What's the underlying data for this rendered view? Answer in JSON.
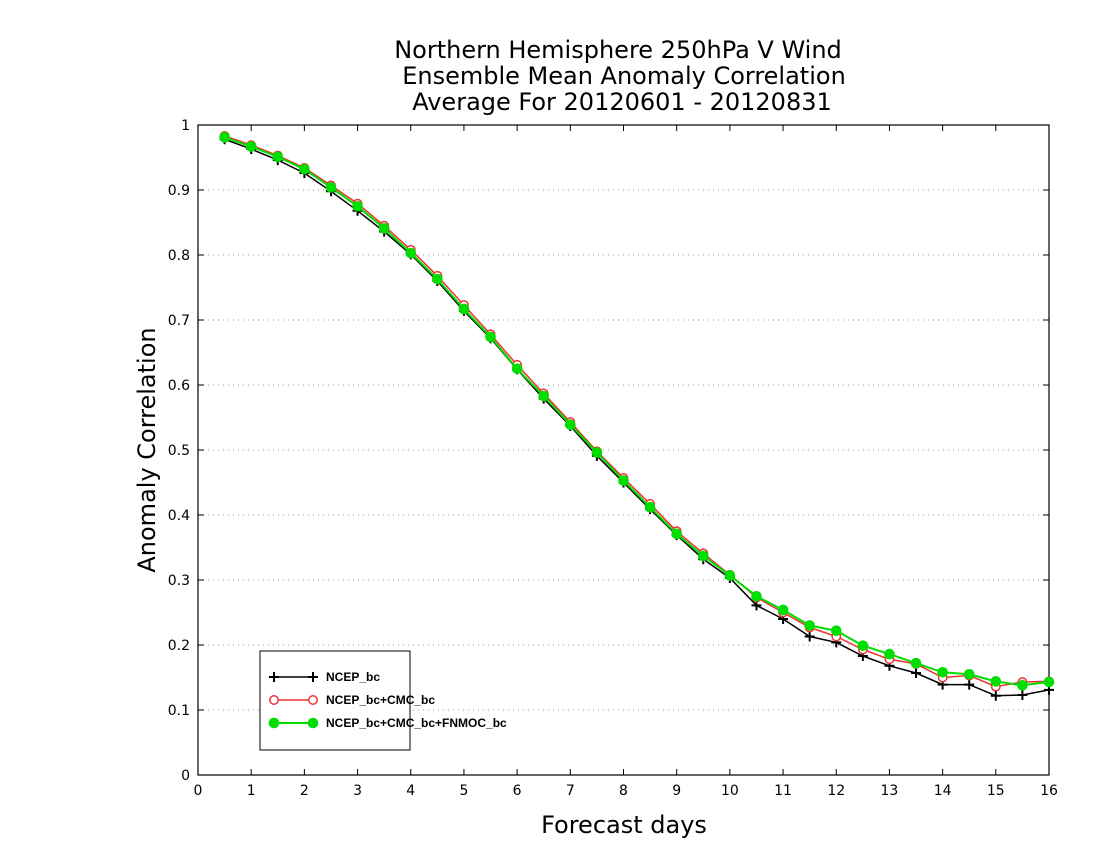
{
  "chart_data": {
    "type": "line",
    "title_lines": [
      "Northern Hemisphere 250hPa V Wind",
      "Ensemble Mean Anomaly Correlation",
      "Average For 20120601 - 20120831"
    ],
    "xlabel": "Forecast days",
    "ylabel": "Anomaly Correlation",
    "xlim": [
      0,
      16
    ],
    "ylim": [
      0,
      1
    ],
    "xticks": [
      0,
      1,
      2,
      3,
      4,
      5,
      6,
      7,
      8,
      9,
      10,
      11,
      12,
      13,
      14,
      15,
      16
    ],
    "yticks": [
      0,
      0.1,
      0.2,
      0.3,
      0.4,
      0.5,
      0.6,
      0.7,
      0.8,
      0.9,
      1
    ],
    "ytick_labels": [
      "0",
      "0.1",
      "0.2",
      "0.3",
      "0.4",
      "0.5",
      "0.6",
      "0.7",
      "0.8",
      "0.9",
      "1"
    ],
    "xtick_labels": [
      "0",
      "1",
      "2",
      "3",
      "4",
      "5",
      "6",
      "7",
      "8",
      "9",
      "10",
      "11",
      "12",
      "13",
      "14",
      "15",
      "16"
    ],
    "grid": "horizontal dotted",
    "legend_position": "bottom-left",
    "x": [
      0.5,
      1,
      1.5,
      2,
      2.5,
      3,
      3.5,
      4,
      4.5,
      5,
      5.5,
      6,
      6.5,
      7,
      7.5,
      8,
      8.5,
      9,
      9.5,
      10,
      10.5,
      11,
      11.5,
      12,
      12.5,
      13,
      13.5,
      14,
      14.5,
      15,
      15.5,
      16
    ],
    "series": [
      {
        "name": "NCEP_bc",
        "color": "#000000",
        "marker": "plus",
        "values": [
          0.978,
          0.963,
          0.946,
          0.926,
          0.898,
          0.868,
          0.836,
          0.801,
          0.76,
          0.714,
          0.672,
          0.624,
          0.579,
          0.537,
          0.491,
          0.45,
          0.409,
          0.369,
          0.332,
          0.303,
          0.261,
          0.24,
          0.213,
          0.204,
          0.183,
          0.168,
          0.157,
          0.139,
          0.139,
          0.122,
          0.123,
          0.131
        ]
      },
      {
        "name": "NCEP_bc+CMC_bc",
        "color": "#ee3333",
        "marker": "open-circle",
        "values": [
          0.983,
          0.969,
          0.953,
          0.934,
          0.907,
          0.879,
          0.845,
          0.808,
          0.768,
          0.723,
          0.678,
          0.631,
          0.587,
          0.543,
          0.498,
          0.457,
          0.417,
          0.375,
          0.341,
          0.308,
          0.273,
          0.25,
          0.227,
          0.213,
          0.193,
          0.178,
          0.171,
          0.15,
          0.153,
          0.136,
          0.143,
          0.144
        ]
      },
      {
        "name": "NCEP_bc+CMC_bc+FNMOC_bc",
        "color": "#00dd00",
        "marker": "filled-circle",
        "values": [
          0.981,
          0.967,
          0.951,
          0.932,
          0.904,
          0.875,
          0.841,
          0.803,
          0.763,
          0.717,
          0.674,
          0.625,
          0.583,
          0.539,
          0.496,
          0.453,
          0.412,
          0.371,
          0.337,
          0.307,
          0.275,
          0.254,
          0.23,
          0.222,
          0.199,
          0.186,
          0.172,
          0.158,
          0.155,
          0.144,
          0.138,
          0.143
        ]
      }
    ]
  }
}
